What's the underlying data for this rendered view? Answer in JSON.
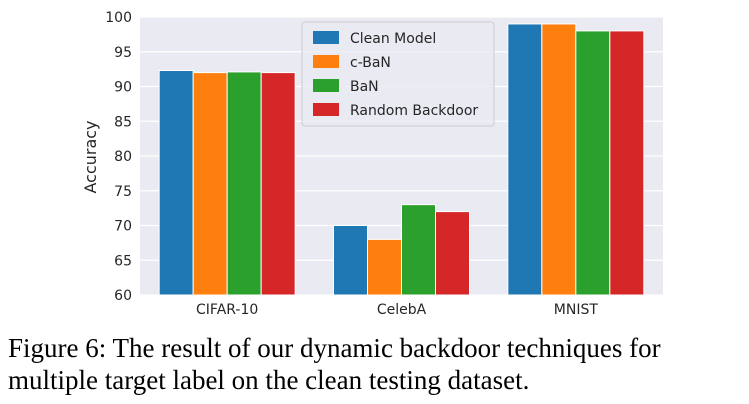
{
  "chart_data": {
    "type": "bar",
    "categories": [
      "CIFAR-10",
      "CelebA",
      "MNIST"
    ],
    "series": [
      {
        "name": "Clean Model",
        "color": "#1f77b4",
        "values": [
          92.3,
          70,
          99
        ]
      },
      {
        "name": "c-BaN",
        "color": "#ff7f0e",
        "values": [
          92,
          68,
          99
        ]
      },
      {
        "name": "BaN",
        "color": "#2ca02c",
        "values": [
          92.1,
          73,
          98
        ]
      },
      {
        "name": "Random Backdoor",
        "color": "#d62728",
        "values": [
          92,
          72,
          98
        ]
      }
    ],
    "ylabel": "Accuracy",
    "ylim": [
      60,
      100
    ],
    "yticks": [
      60,
      65,
      70,
      75,
      80,
      85,
      90,
      95,
      100
    ],
    "grid": true,
    "legend": "top-center"
  },
  "caption": "Figure 6: The result of our dynamic backdoor techniques for multiple target label on the clean testing dataset."
}
